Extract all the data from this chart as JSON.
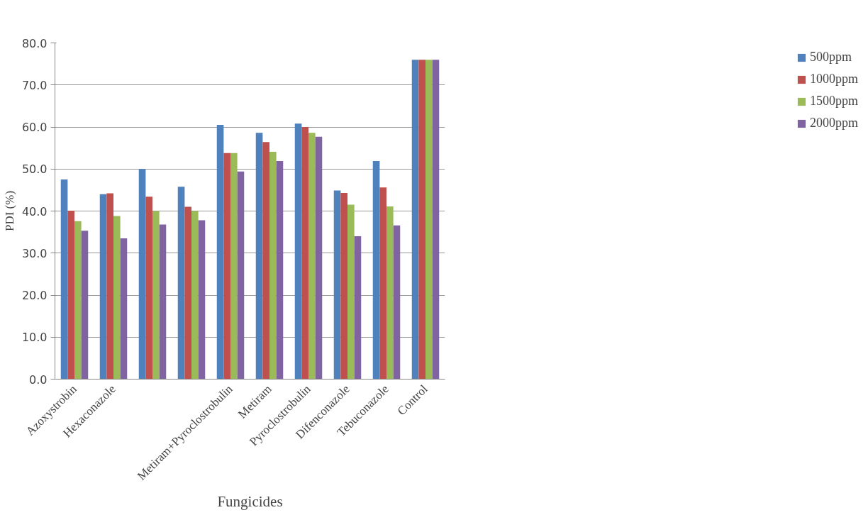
{
  "chart_data": {
    "type": "bar",
    "xlabel": "Fungicides",
    "ylabel": "PDI (%)",
    "categories": [
      "Azoxystrobin",
      "Hexaconazole",
      null,
      null,
      "Metiram+Pyroclostrobulin",
      "Metiram",
      "Pyroclostrobulin",
      "Difenconazole",
      "Tebuconazole",
      "Control"
    ],
    "series": [
      {
        "name": "500ppm",
        "color": "#4f81bd",
        "values": [
          47.5,
          44.0,
          50.0,
          45.8,
          60.5,
          58.6,
          60.8,
          44.9,
          51.9,
          76.0
        ]
      },
      {
        "name": "1000ppm",
        "color": "#c0504d",
        "values": [
          40.1,
          44.2,
          43.4,
          41.0,
          53.8,
          56.4,
          60.0,
          44.3,
          45.6,
          76.0
        ]
      },
      {
        "name": "1500ppm",
        "color": "#9bbb59",
        "values": [
          37.6,
          38.8,
          40.0,
          40.0,
          53.8,
          54.1,
          58.6,
          41.5,
          41.1,
          76.0
        ]
      },
      {
        "name": "2000ppm",
        "color": "#8064a2",
        "values": [
          35.3,
          33.5,
          36.8,
          37.8,
          49.4,
          51.9,
          57.7,
          34.0,
          36.6,
          76.0
        ]
      }
    ],
    "ylim": [
      0,
      80
    ],
    "yticks": [
      {
        "value": 0,
        "label": "0.0"
      },
      {
        "value": 10,
        "label": "10.0"
      },
      {
        "value": 20,
        "label": "20.0"
      },
      {
        "value": 30,
        "label": "30.0"
      },
      {
        "value": 40,
        "label": "40.0"
      },
      {
        "value": 50,
        "label": "50.0"
      },
      {
        "value": 60,
        "label": "60.0"
      },
      {
        "value": 70,
        "label": "70.0"
      },
      {
        "value": 80,
        "label": "80.0"
      }
    ],
    "grid": "y",
    "legend": "right"
  }
}
